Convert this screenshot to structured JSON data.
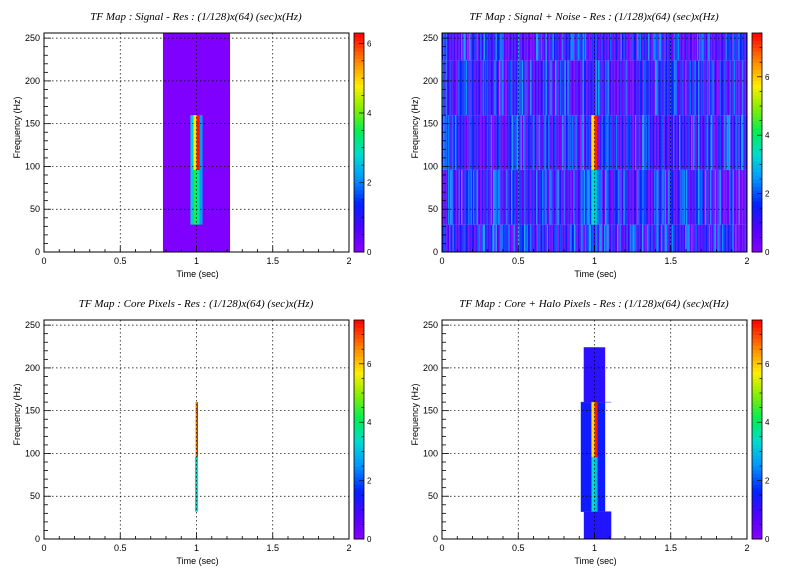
{
  "chart_data": [
    {
      "type": "heatmap",
      "title": "TF Map : Signal - Res : (1/128)x(64) (sec)x(Hz)",
      "xlabel": "Time (sec)",
      "ylabel": "Frequency (Hz)",
      "xlim": [
        0,
        2
      ],
      "ylim": [
        0,
        256
      ],
      "xticks": [
        "0",
        "0.5",
        "1",
        "1.5",
        "2"
      ],
      "yticks": [
        "0",
        "50",
        "100",
        "150",
        "200",
        "250"
      ],
      "zlim": [
        0,
        6.3
      ],
      "zticks": [
        "0",
        "2",
        "4",
        "6"
      ],
      "grid": true,
      "colormap": "rainbow",
      "background_cells": {
        "time_range": [
          0.78,
          1.22
        ],
        "freq_range": [
          0,
          256
        ],
        "value": 0.1
      },
      "cells": [
        {
          "t0": 0.96,
          "t1": 0.98,
          "f0": 32,
          "f1": 160,
          "value": 2.7
        },
        {
          "t0": 0.98,
          "t1": 1.0,
          "f0": 32,
          "f1": 160,
          "value": 3.6
        },
        {
          "t0": 1.0,
          "t1": 1.02,
          "f0": 32,
          "f1": 96,
          "value": 3.0
        },
        {
          "t0": 1.02,
          "t1": 1.04,
          "f0": 32,
          "f1": 160,
          "value": 2.2
        },
        {
          "t0": 0.98,
          "t1": 1.0,
          "f0": 96,
          "f1": 160,
          "value": 4.8
        },
        {
          "t0": 1.0,
          "t1": 1.02,
          "f0": 96,
          "f1": 160,
          "value": 6.2
        }
      ]
    },
    {
      "type": "heatmap",
      "title": "TF Map : Signal + Noise - Res : (1/128)x(64) (sec)x(Hz)",
      "xlabel": "Time (sec)",
      "ylabel": "Frequency (Hz)",
      "xlim": [
        0,
        2
      ],
      "ylim": [
        0,
        256
      ],
      "xticks": [
        "0",
        "0.5",
        "1",
        "1.5",
        "2"
      ],
      "yticks": [
        "0",
        "50",
        "100",
        "150",
        "200",
        "250"
      ],
      "zlim": [
        0,
        7.5
      ],
      "zticks": [
        "0",
        "2",
        "4",
        "6"
      ],
      "grid": true,
      "colormap": "rainbow",
      "noise": {
        "time_range": [
          0,
          2
        ],
        "freq_range": [
          0,
          256
        ],
        "time_bin": 0.0078125,
        "freq_bins": [
          0,
          32,
          96,
          160,
          224,
          256
        ],
        "value_range": [
          0.2,
          2.8
        ]
      },
      "cells": [
        {
          "t0": 0.98,
          "t1": 1.0,
          "f0": 32,
          "f1": 160,
          "value": 3.4
        },
        {
          "t0": 1.0,
          "t1": 1.02,
          "f0": 32,
          "f1": 96,
          "value": 3.0
        },
        {
          "t0": 0.98,
          "t1": 1.0,
          "f0": 96,
          "f1": 160,
          "value": 5.8
        },
        {
          "t0": 1.0,
          "t1": 1.02,
          "f0": 96,
          "f1": 160,
          "value": 7.3
        }
      ]
    },
    {
      "type": "heatmap",
      "title": "TF Map : Core Pixels - Res : (1/128)x(64) (sec)x(Hz)",
      "xlabel": "Time (sec)",
      "ylabel": "Frequency (Hz)",
      "xlim": [
        0,
        2
      ],
      "ylim": [
        0,
        256
      ],
      "xticks": [
        "0",
        "0.5",
        "1",
        "1.5",
        "2"
      ],
      "yticks": [
        "0",
        "50",
        "100",
        "150",
        "200",
        "250"
      ],
      "zlim": [
        0,
        7.5
      ],
      "zticks": [
        "0",
        "2",
        "4",
        "6"
      ],
      "grid": true,
      "colormap": "rainbow",
      "cells": [
        {
          "t0": 0.99,
          "t1": 1.01,
          "f0": 32,
          "f1": 96,
          "value": 3.4
        },
        {
          "t0": 0.99,
          "t1": 1.0,
          "f0": 96,
          "f1": 160,
          "value": 5.8
        },
        {
          "t0": 1.0,
          "t1": 1.01,
          "f0": 96,
          "f1": 160,
          "value": 7.3
        }
      ]
    },
    {
      "type": "heatmap",
      "title": "TF Map : Core + Halo Pixels - Res : (1/128)x(64) (sec)x(Hz)",
      "xlabel": "Time (sec)",
      "ylabel": "Frequency (Hz)",
      "xlim": [
        0,
        2
      ],
      "ylim": [
        0,
        256
      ],
      "xticks": [
        "0",
        "0.5",
        "1",
        "1.5",
        "2"
      ],
      "yticks": [
        "0",
        "50",
        "100",
        "150",
        "200",
        "250"
      ],
      "zlim": [
        0,
        7.5
      ],
      "zticks": [
        "0",
        "2",
        "4",
        "6"
      ],
      "grid": true,
      "colormap": "rainbow",
      "halo": [
        {
          "t0": 0.93,
          "t1": 1.07,
          "f0": 224,
          "f1": 224,
          "value": 1.3
        },
        {
          "t0": 0.93,
          "t1": 1.03,
          "f0": 160,
          "f1": 224,
          "value": 1.3
        },
        {
          "t0": 0.91,
          "t1": 1.07,
          "f0": 32,
          "f1": 160,
          "value": 1.5
        },
        {
          "t0": 0.93,
          "t1": 1.11,
          "f0": 0,
          "f1": 32,
          "value": 1.3
        }
      ],
      "cells": [
        {
          "t0": 0.98,
          "t1": 1.0,
          "f0": 32,
          "f1": 160,
          "value": 3.4
        },
        {
          "t0": 1.0,
          "t1": 1.02,
          "f0": 32,
          "f1": 96,
          "value": 3.0
        },
        {
          "t0": 0.98,
          "t1": 1.0,
          "f0": 96,
          "f1": 160,
          "value": 5.8
        },
        {
          "t0": 1.0,
          "t1": 1.02,
          "f0": 96,
          "f1": 160,
          "value": 7.3
        }
      ]
    }
  ]
}
